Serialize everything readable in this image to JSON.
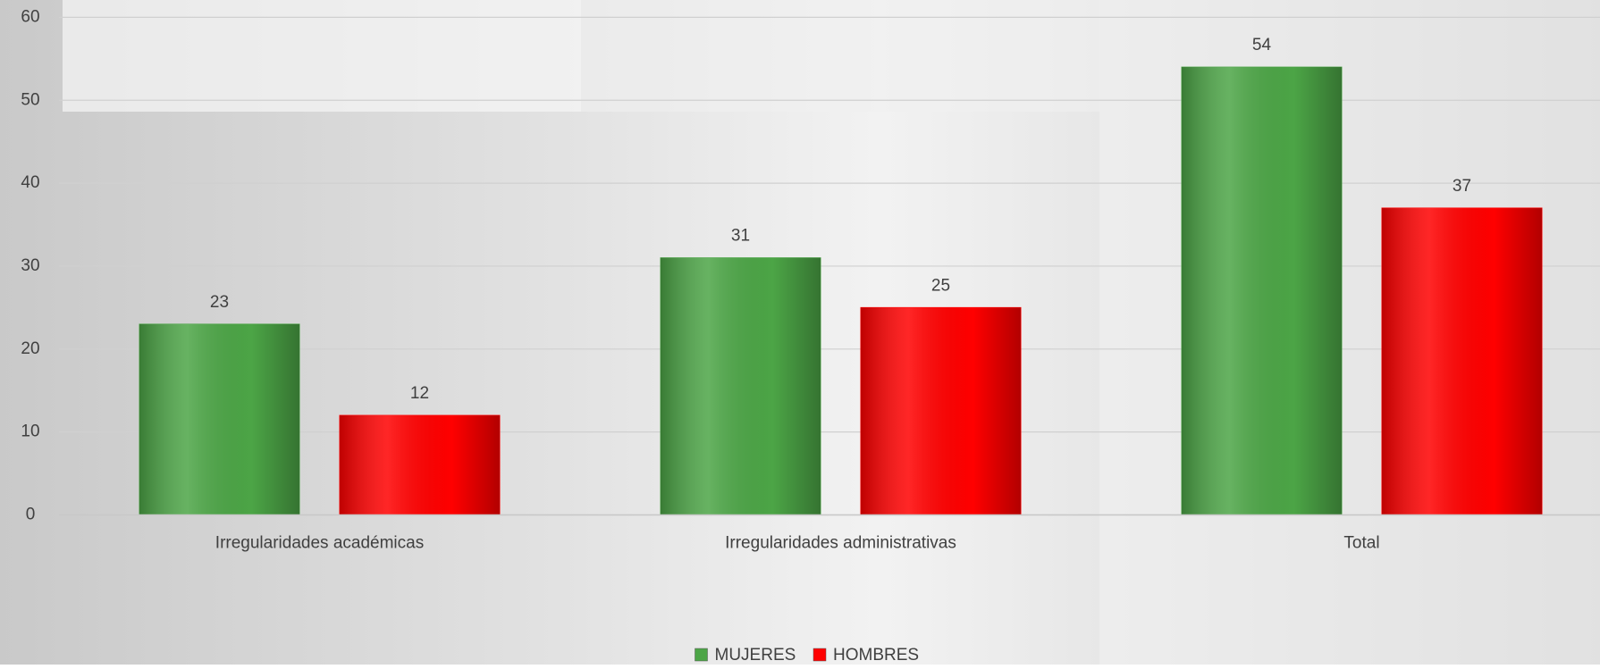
{
  "chart_data": {
    "type": "bar",
    "categories": [
      "Irregularidades académicas",
      "Irregularidades administrativas",
      "Total"
    ],
    "series": [
      {
        "name": "MUJERES",
        "color": "#4ca546",
        "values": [
          23,
          31,
          54
        ]
      },
      {
        "name": "HOMBRES",
        "color": "#ff0000",
        "values": [
          12,
          25,
          37
        ]
      }
    ],
    "ylim": [
      0,
      60
    ],
    "yticks": [
      0,
      10,
      20,
      30,
      40,
      50,
      60
    ],
    "grid": true,
    "legend": "bottom"
  }
}
